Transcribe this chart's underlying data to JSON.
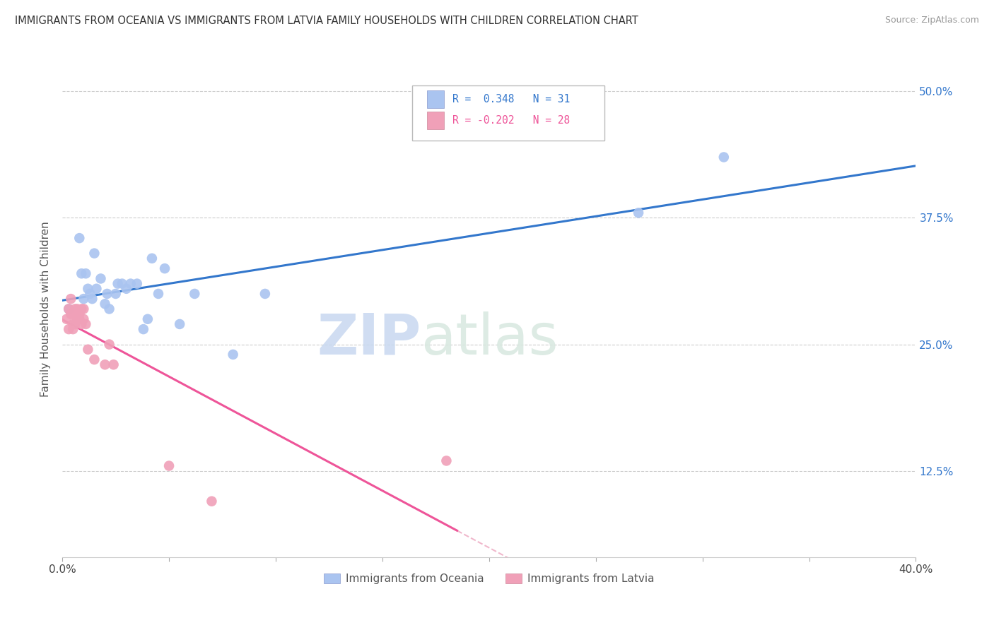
{
  "title": "IMMIGRANTS FROM OCEANIA VS IMMIGRANTS FROM LATVIA FAMILY HOUSEHOLDS WITH CHILDREN CORRELATION CHART",
  "source": "Source: ZipAtlas.com",
  "ylabel": "Family Households with Children",
  "color_oceania": "#aac4f0",
  "color_latvia": "#f0a0b8",
  "color_line_oceania": "#3377cc",
  "color_line_latvia": "#ee5599",
  "color_line_dashed": "#f0b8cc",
  "watermark_zip": "ZIP",
  "watermark_atlas": "atlas",
  "legend_r_oceania": "R =  0.348",
  "legend_n_oceania": "N = 31",
  "legend_r_latvia": "R = -0.202",
  "legend_n_latvia": "N = 28",
  "oceania_x": [
    0.003,
    0.008,
    0.009,
    0.01,
    0.011,
    0.012,
    0.013,
    0.014,
    0.015,
    0.016,
    0.018,
    0.02,
    0.021,
    0.022,
    0.025,
    0.026,
    0.028,
    0.03,
    0.032,
    0.035,
    0.038,
    0.04,
    0.042,
    0.045,
    0.048,
    0.055,
    0.062,
    0.08,
    0.095,
    0.27,
    0.31
  ],
  "oceania_y": [
    0.285,
    0.355,
    0.32,
    0.295,
    0.32,
    0.305,
    0.3,
    0.295,
    0.34,
    0.305,
    0.315,
    0.29,
    0.3,
    0.285,
    0.3,
    0.31,
    0.31,
    0.305,
    0.31,
    0.31,
    0.265,
    0.275,
    0.335,
    0.3,
    0.325,
    0.27,
    0.3,
    0.24,
    0.3,
    0.38,
    0.435
  ],
  "latvia_x": [
    0.002,
    0.003,
    0.003,
    0.004,
    0.004,
    0.005,
    0.005,
    0.005,
    0.006,
    0.006,
    0.006,
    0.007,
    0.007,
    0.008,
    0.008,
    0.009,
    0.009,
    0.01,
    0.01,
    0.011,
    0.012,
    0.015,
    0.02,
    0.022,
    0.024,
    0.05,
    0.07,
    0.18
  ],
  "latvia_y": [
    0.275,
    0.265,
    0.285,
    0.28,
    0.295,
    0.27,
    0.28,
    0.265,
    0.28,
    0.27,
    0.285,
    0.275,
    0.285,
    0.28,
    0.275,
    0.285,
    0.27,
    0.285,
    0.275,
    0.27,
    0.245,
    0.235,
    0.23,
    0.25,
    0.23,
    0.13,
    0.095,
    0.135
  ],
  "xlim": [
    0.0,
    0.4
  ],
  "ylim": [
    0.04,
    0.53
  ],
  "yticks": [
    0.125,
    0.25,
    0.375,
    0.5
  ],
  "ytick_labels": [
    "12.5%",
    "25.0%",
    "37.5%",
    "50.0%"
  ],
  "xticks": [
    0.0,
    0.05,
    0.1,
    0.15,
    0.2,
    0.25,
    0.3,
    0.35,
    0.4
  ],
  "xlabels_show": {
    "0.0": "0.0%",
    "0.40": "40.0%"
  }
}
